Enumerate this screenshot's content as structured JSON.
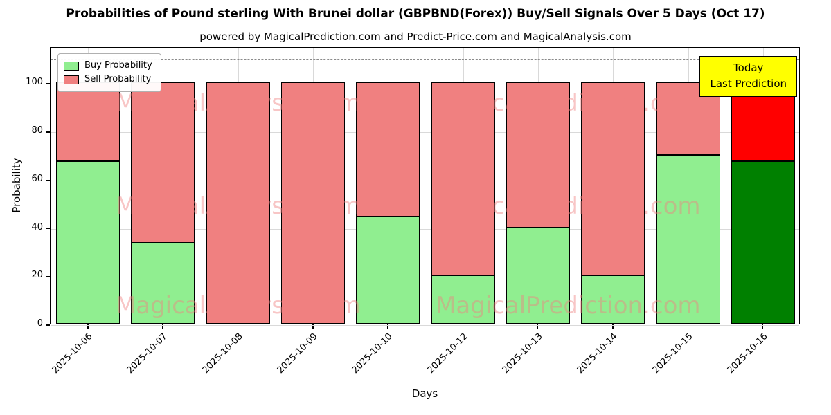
{
  "chart_data": {
    "type": "bar",
    "stacked": true,
    "title": "Probabilities of Pound sterling With Brunei dollar (GBPBND(Forex)) Buy/Sell Signals Over 5 Days (Oct 17)",
    "subtitle": "powered by MagicalPrediction.com and Predict-Price.com and MagicalAnalysis.com",
    "xlabel": "Days",
    "ylabel": "Probability",
    "ylim": [
      0,
      115
    ],
    "yticks": [
      0,
      20,
      40,
      60,
      80,
      100
    ],
    "grid": true,
    "legend_position": "top-left",
    "categories": [
      "2025-10-06",
      "2025-10-07",
      "2025-10-08",
      "2025-10-09",
      "2025-10-10",
      "2025-10-12",
      "2025-10-13",
      "2025-10-14",
      "2025-10-15",
      "2025-10-16"
    ],
    "series": [
      {
        "name": "Buy Probability",
        "color": "#90EE90",
        "values": [
          67.5,
          33.5,
          0,
          0,
          44.5,
          20,
          40,
          20,
          70,
          67.5
        ]
      },
      {
        "name": "Sell Probability",
        "color": "#F08080",
        "values": [
          32.5,
          66.5,
          100,
          100,
          55.5,
          80,
          60,
          80,
          30,
          32.5
        ]
      }
    ],
    "highlight_last_bar": {
      "index": 9,
      "buy_color": "#008000",
      "sell_color": "#FF0000"
    },
    "dashed_line_y": 110,
    "annotation": {
      "line1": "Today",
      "line2": "Last Prediction",
      "bg_color": "#FFFF00"
    },
    "watermarks": [
      "MagicalAnalysis.com",
      "MagicalPrediction.com"
    ]
  }
}
